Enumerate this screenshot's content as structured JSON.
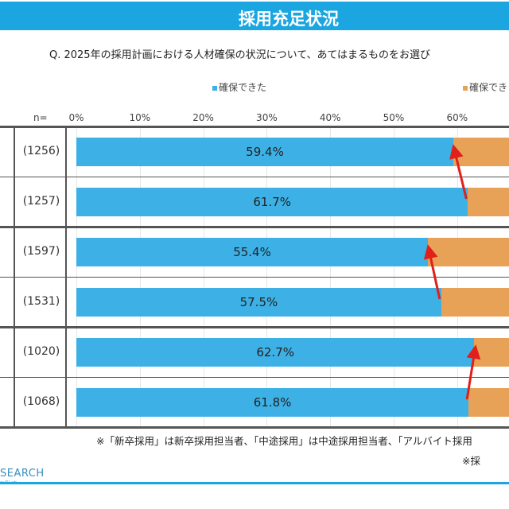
{
  "header": {
    "title": "採用充足状況"
  },
  "question": "Q. 2025年の採用計画における人材確保の状況について、あてはまるものをお選び",
  "chart_data": {
    "type": "bar",
    "orientation": "horizontal",
    "stacked": true,
    "legend": [
      {
        "label": "確保できた",
        "color": "#3db1e6"
      },
      {
        "label": "確保でき",
        "color": "#e8a257"
      }
    ],
    "n_header": "n=",
    "x_ticks": [
      "0%",
      "10%",
      "20%",
      "30%",
      "40%",
      "50%",
      "60%"
    ],
    "xlim": [
      0,
      100
    ],
    "rows": [
      {
        "n": "(1256)",
        "value": 59.4,
        "label": "59.4%"
      },
      {
        "n": "(1257)",
        "value": 61.7,
        "label": "61.7%"
      },
      {
        "n": "(1597)",
        "value": 55.4,
        "label": "55.4%"
      },
      {
        "n": "(1531)",
        "value": 57.5,
        "label": "57.5%"
      },
      {
        "n": "(1020)",
        "value": 62.7,
        "label": "62.7%"
      },
      {
        "n": "(1068)",
        "value": 61.8,
        "label": "61.8%"
      }
    ],
    "arrow_color": "#e0201b"
  },
  "notes": {
    "line1": "※「新卒採用」は新卒採用担当者、「中途採用」は中途採用担当者、「アルバイト採用",
    "line2": "※採"
  },
  "logo": {
    "text": "SEARCH",
    "sub": "ータLab"
  }
}
